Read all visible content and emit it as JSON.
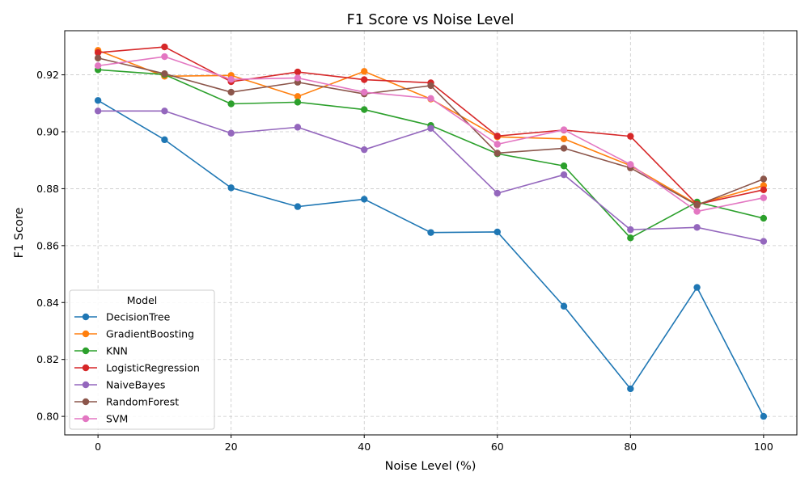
{
  "chart_data": {
    "type": "line",
    "title": "F1 Score vs Noise Level",
    "xlabel": "Noise Level (%)",
    "ylabel": "F1 Score",
    "x": [
      0,
      10,
      20,
      30,
      40,
      50,
      60,
      70,
      80,
      90,
      100
    ],
    "xlim": [
      -5,
      105
    ],
    "ylim": [
      0.7935,
      0.9355
    ],
    "xticks": [
      0,
      20,
      40,
      60,
      80,
      100
    ],
    "xtick_labels": [
      "0",
      "20",
      "40",
      "60",
      "80",
      "100"
    ],
    "yticks": [
      0.8,
      0.82,
      0.84,
      0.86,
      0.88,
      0.9,
      0.92
    ],
    "ytick_labels": [
      "0.80",
      "0.82",
      "0.84",
      "0.86",
      "0.88",
      "0.90",
      "0.92"
    ],
    "grid": true,
    "legend": {
      "title": "Model",
      "placement": "lower-left"
    },
    "series": [
      {
        "name": "DecisionTree",
        "color": "#1f77b4",
        "values": [
          0.911,
          0.8972,
          0.8803,
          0.8737,
          0.8763,
          0.8646,
          0.8648,
          0.8387,
          0.8097,
          0.8453,
          0.8
        ]
      },
      {
        "name": "GradientBoosting",
        "color": "#ff7f0e",
        "values": [
          0.9286,
          0.9195,
          0.9198,
          0.9124,
          0.9212,
          0.9115,
          0.8982,
          0.8975,
          0.8881,
          0.8745,
          0.8811
        ]
      },
      {
        "name": "KNN",
        "color": "#2ca02c",
        "values": [
          0.9218,
          0.9201,
          0.9098,
          0.9104,
          0.9078,
          0.9022,
          0.8923,
          0.888,
          0.8627,
          0.8753,
          0.8696
        ]
      },
      {
        "name": "LogisticRegression",
        "color": "#d62728",
        "values": [
          0.9278,
          0.9298,
          0.9176,
          0.921,
          0.9183,
          0.9172,
          0.8985,
          0.9006,
          0.8984,
          0.8745,
          0.8796
        ]
      },
      {
        "name": "NaiveBayes",
        "color": "#9467bd",
        "values": [
          0.9073,
          0.9073,
          0.8995,
          0.9016,
          0.8937,
          0.9012,
          0.8784,
          0.8849,
          0.8656,
          0.8664,
          0.8615
        ]
      },
      {
        "name": "RandomForest",
        "color": "#8c564b",
        "values": [
          0.9259,
          0.9204,
          0.9139,
          0.9174,
          0.9133,
          0.9162,
          0.8925,
          0.8942,
          0.8873,
          0.8742,
          0.8834
        ]
      },
      {
        "name": "SVM",
        "color": "#e377c2",
        "values": [
          0.9232,
          0.9264,
          0.9184,
          0.9189,
          0.9139,
          0.9117,
          0.8956,
          0.9007,
          0.8885,
          0.872,
          0.8768
        ]
      }
    ]
  }
}
